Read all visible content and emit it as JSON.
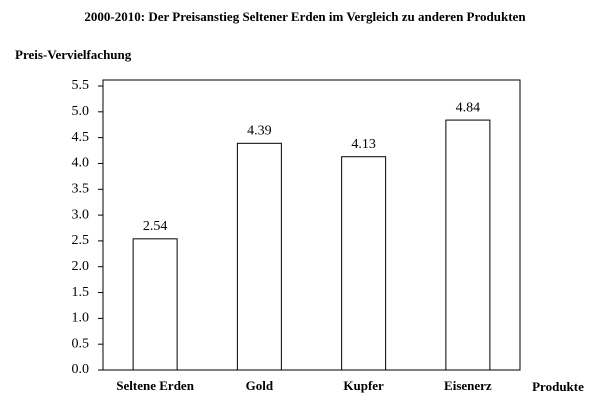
{
  "chart_data": {
    "type": "bar",
    "title": "2000-2010: Der Preisanstieg Seltener Erden im Vergleich zu anderen Produkten",
    "y_label": "Preis-Vervielfachung",
    "x_label": "Produkte",
    "categories": [
      "Seltene Erden",
      "Gold",
      "Kupfer",
      "Eisenerz"
    ],
    "values": [
      2.54,
      4.39,
      4.13,
      4.84
    ],
    "color": "#ffffff",
    "ylim": [
      0,
      5.5
    ],
    "yticks": [
      {
        "value": 0,
        "label": "0.0"
      },
      0.5,
      {
        "value": 1,
        "label": "1.0"
      },
      1.5,
      {
        "value": 2,
        "label": "2.0"
      },
      2.5,
      {
        "value": 3,
        "label": "3.0"
      },
      3.5,
      {
        "value": 4,
        "label": "4.0"
      },
      4.5,
      {
        "value": 5,
        "label": "5.0"
      },
      5.5
    ],
    "grid": false
  }
}
